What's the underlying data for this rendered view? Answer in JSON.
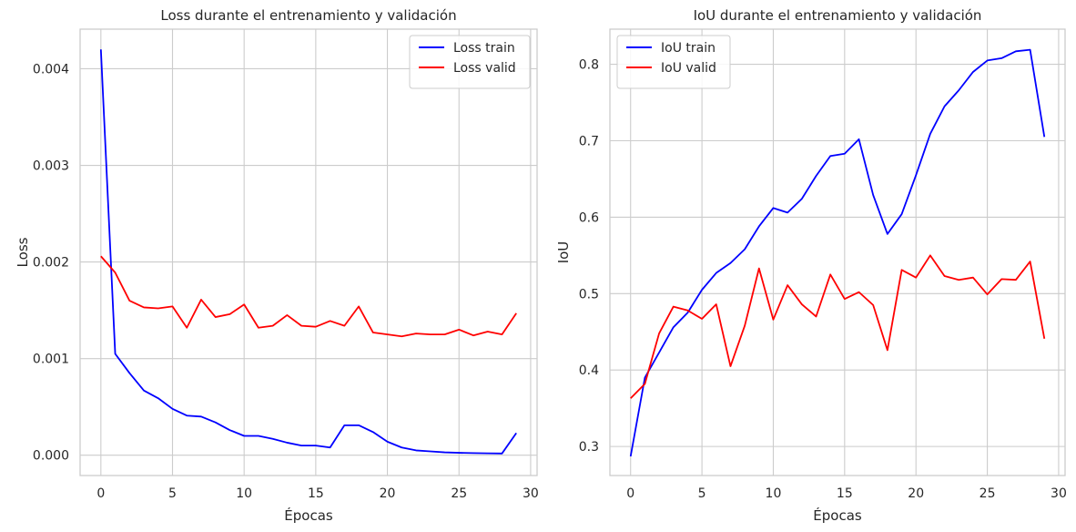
{
  "chart_data": [
    {
      "type": "line",
      "title": "Loss durante el entrenamiento y validación",
      "xlabel": "Épocas",
      "ylabel": "Loss",
      "xlim": [
        -1.45,
        30.45
      ],
      "ylim": [
        -0.00021,
        0.00441
      ],
      "xticks": [
        0,
        5,
        10,
        15,
        20,
        25,
        30
      ],
      "yticks": [
        0.0,
        0.001,
        0.002,
        0.003,
        0.004
      ],
      "ytick_labels": [
        "0.000",
        "0.001",
        "0.002",
        "0.003",
        "0.004"
      ],
      "grid": true,
      "legend_position": "top-right",
      "x": [
        0,
        1,
        2,
        3,
        4,
        5,
        6,
        7,
        8,
        9,
        10,
        11,
        12,
        13,
        14,
        15,
        16,
        17,
        18,
        19,
        20,
        21,
        22,
        23,
        24,
        25,
        26,
        27,
        28,
        29
      ],
      "series": [
        {
          "name": "Loss train",
          "color": "#0000ff",
          "values": [
            0.0042,
            0.00105,
            0.00085,
            0.00067,
            0.00059,
            0.00048,
            0.00041,
            0.0004,
            0.00034,
            0.00026,
            0.0002,
            0.0002,
            0.00017,
            0.00013,
            0.0001,
            0.0001,
            8e-05,
            0.00031,
            0.00031,
            0.00024,
            0.00014,
            8e-05,
            5e-05,
            4e-05,
            3e-05,
            2.5e-05,
            2.2e-05,
            2e-05,
            1.8e-05,
            0.00023
          ]
        },
        {
          "name": "Loss valid",
          "color": "#ff0000",
          "values": [
            0.00206,
            0.00189,
            0.0016,
            0.00153,
            0.00152,
            0.00154,
            0.00132,
            0.00161,
            0.00143,
            0.00146,
            0.00156,
            0.00132,
            0.00134,
            0.00145,
            0.00134,
            0.00133,
            0.00139,
            0.00134,
            0.00154,
            0.00127,
            0.00125,
            0.00123,
            0.00126,
            0.00125,
            0.00125,
            0.0013,
            0.00124,
            0.00128,
            0.00125,
            0.00147
          ]
        }
      ]
    },
    {
      "type": "line",
      "title": "IoU durante el entrenamiento y validación",
      "xlabel": "Épocas",
      "ylabel": "IoU",
      "xlim": [
        -1.45,
        30.45
      ],
      "ylim": [
        0.262,
        0.846
      ],
      "xticks": [
        0,
        5,
        10,
        15,
        20,
        25,
        30
      ],
      "yticks": [
        0.3,
        0.4,
        0.5,
        0.6,
        0.7,
        0.8
      ],
      "ytick_labels": [
        "0.3",
        "0.4",
        "0.5",
        "0.6",
        "0.7",
        "0.8"
      ],
      "grid": true,
      "legend_position": "top-left",
      "x": [
        0,
        1,
        2,
        3,
        4,
        5,
        6,
        7,
        8,
        9,
        10,
        11,
        12,
        13,
        14,
        15,
        16,
        17,
        18,
        19,
        20,
        21,
        22,
        23,
        24,
        25,
        26,
        27,
        28,
        29
      ],
      "series": [
        {
          "name": "IoU train",
          "color": "#0000ff",
          "values": [
            0.287,
            0.39,
            0.423,
            0.456,
            0.475,
            0.505,
            0.527,
            0.54,
            0.558,
            0.588,
            0.612,
            0.606,
            0.624,
            0.654,
            0.68,
            0.683,
            0.702,
            0.629,
            0.578,
            0.604,
            0.655,
            0.709,
            0.745,
            0.766,
            0.79,
            0.805,
            0.808,
            0.817,
            0.819,
            0.705
          ]
        },
        {
          "name": "IoU valid",
          "color": "#ff0000",
          "values": [
            0.363,
            0.382,
            0.448,
            0.483,
            0.478,
            0.467,
            0.486,
            0.405,
            0.458,
            0.533,
            0.466,
            0.511,
            0.486,
            0.47,
            0.525,
            0.493,
            0.502,
            0.485,
            0.426,
            0.531,
            0.521,
            0.55,
            0.523,
            0.518,
            0.521,
            0.499,
            0.519,
            0.518,
            0.542,
            0.441
          ]
        }
      ]
    }
  ]
}
